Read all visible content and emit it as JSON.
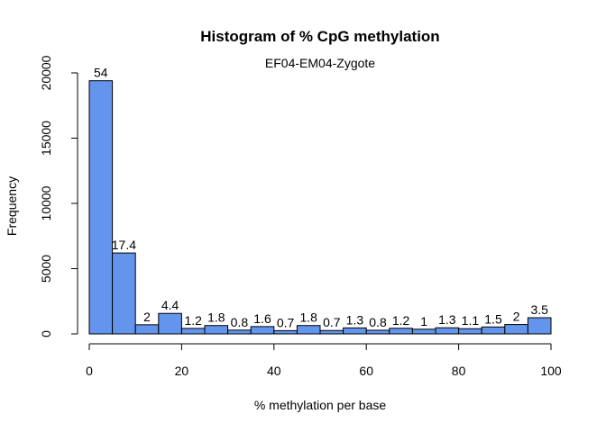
{
  "chart_data": {
    "type": "bar",
    "title": "Histogram of % CpG methylation",
    "subtitle": "EF04-EM04-Zygote",
    "xlabel": "% methylation per base",
    "ylabel": "Frequency",
    "xlim": [
      0,
      100
    ],
    "ylim": [
      0,
      20000
    ],
    "x_ticks": [
      0,
      20,
      40,
      60,
      80,
      100
    ],
    "y_ticks": [
      0,
      5000,
      10000,
      15000,
      20000
    ],
    "bin_width": 5,
    "bin_starts": [
      0,
      5,
      10,
      15,
      20,
      25,
      30,
      35,
      40,
      45,
      50,
      55,
      60,
      65,
      70,
      75,
      80,
      85,
      90,
      95
    ],
    "values": [
      19400,
      6200,
      700,
      1570,
      420,
      640,
      290,
      560,
      250,
      640,
      260,
      460,
      280,
      430,
      360,
      470,
      400,
      530,
      720,
      1240
    ],
    "data_labels": [
      "54",
      "17.4",
      "2",
      "4.4",
      "1.2",
      "1.8",
      "0.8",
      "1.6",
      "0.7",
      "1.8",
      "0.7",
      "1.3",
      "0.8",
      "1.2",
      "1",
      "1.3",
      "1.1",
      "1.5",
      "2",
      "3.5"
    ],
    "bar_color": "#6495ED",
    "grid": false
  }
}
